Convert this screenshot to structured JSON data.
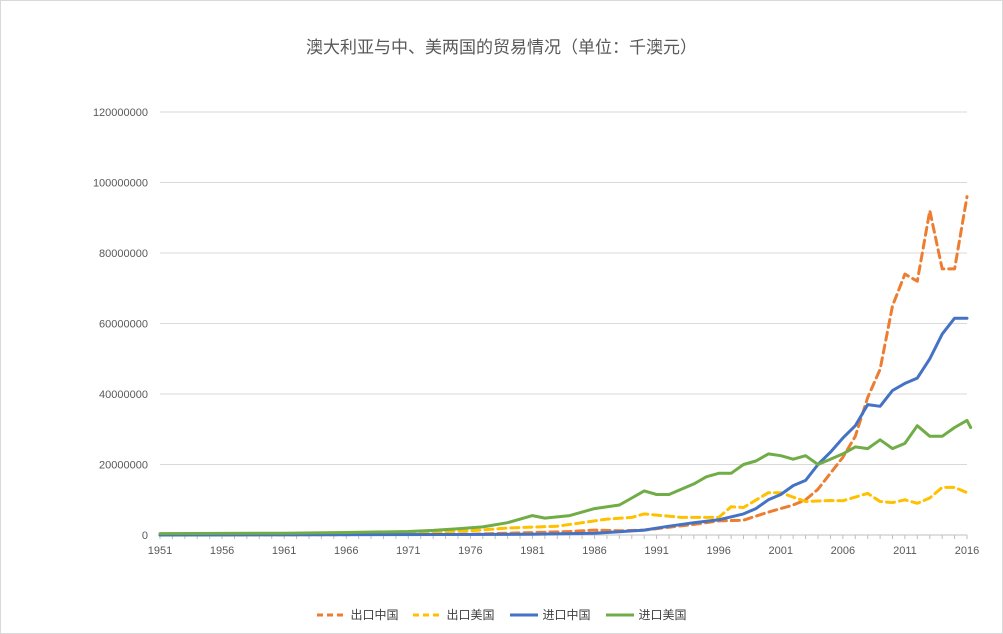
{
  "chart_data": {
    "type": "line",
    "title": "澳大利亚与中、美两国的贸易情况（单位：千澳元）",
    "xlabel": "",
    "ylabel": "",
    "ylim": [
      0,
      120000000
    ],
    "yticks": [
      "0",
      "20000000",
      "40000000",
      "60000000",
      "80000000",
      "100000000",
      "120000000"
    ],
    "xlim": [
      1951,
      2016
    ],
    "xticks": [
      "1951",
      "1956",
      "1961",
      "1966",
      "1971",
      "1976",
      "1981",
      "1986",
      "1991",
      "1996",
      "2001",
      "2006",
      "2011",
      "2016"
    ],
    "grid": true,
    "legend_position": "bottom",
    "series": [
      {
        "name": "出口中国",
        "color": "#ED7D31",
        "dash": "8,5",
        "points": [
          [
            1951,
            0
          ],
          [
            1976,
            200000
          ],
          [
            1984,
            1000000
          ],
          [
            1986,
            1400000
          ],
          [
            1988,
            1200000
          ],
          [
            1990,
            1400000
          ],
          [
            1992,
            2200000
          ],
          [
            1994,
            3000000
          ],
          [
            1996,
            4000000
          ],
          [
            1998,
            4200000
          ],
          [
            2000,
            6500000
          ],
          [
            2002,
            8500000
          ],
          [
            2003,
            10000000
          ],
          [
            2004,
            13000000
          ],
          [
            2005,
            17500000
          ],
          [
            2006,
            22000000
          ],
          [
            2007,
            28000000
          ],
          [
            2008,
            39000000
          ],
          [
            2009,
            47000000
          ],
          [
            2010,
            65000000
          ],
          [
            2011,
            74000000
          ],
          [
            2012,
            72000000
          ],
          [
            2013,
            92000000
          ],
          [
            2014,
            75500000
          ],
          [
            2015,
            75500000
          ],
          [
            2016,
            96000000
          ]
        ]
      },
      {
        "name": "出口美国",
        "color": "#FFC000",
        "dash": "8,5",
        "points": [
          [
            1951,
            200000
          ],
          [
            1961,
            300000
          ],
          [
            1971,
            600000
          ],
          [
            1976,
            1200000
          ],
          [
            1979,
            2000000
          ],
          [
            1983,
            2500000
          ],
          [
            1985,
            3500000
          ],
          [
            1987,
            4500000
          ],
          [
            1989,
            5000000
          ],
          [
            1990,
            6000000
          ],
          [
            1993,
            5000000
          ],
          [
            1996,
            5000000
          ],
          [
            1997,
            8000000
          ],
          [
            1998,
            7800000
          ],
          [
            2000,
            12000000
          ],
          [
            2001,
            12000000
          ],
          [
            2003,
            9500000
          ],
          [
            2005,
            9800000
          ],
          [
            2006,
            9700000
          ],
          [
            2008,
            11800000
          ],
          [
            2009,
            9500000
          ],
          [
            2010,
            9200000
          ],
          [
            2011,
            10000000
          ],
          [
            2012,
            9000000
          ],
          [
            2013,
            10500000
          ],
          [
            2014,
            13500000
          ],
          [
            2015,
            13500000
          ],
          [
            2016,
            12000000
          ]
        ]
      },
      {
        "name": "进口中国",
        "color": "#4472C4",
        "dash": "",
        "points": [
          [
            1951,
            0
          ],
          [
            1981,
            200000
          ],
          [
            1986,
            500000
          ],
          [
            1988,
            900000
          ],
          [
            1990,
            1400000
          ],
          [
            1992,
            2500000
          ],
          [
            1994,
            3500000
          ],
          [
            1996,
            4300000
          ],
          [
            1998,
            6000000
          ],
          [
            1999,
            7500000
          ],
          [
            2000,
            10000000
          ],
          [
            2001,
            11500000
          ],
          [
            2002,
            14000000
          ],
          [
            2003,
            15500000
          ],
          [
            2004,
            20000000
          ],
          [
            2005,
            23500000
          ],
          [
            2006,
            27500000
          ],
          [
            2007,
            31000000
          ],
          [
            2008,
            37000000
          ],
          [
            2009,
            36500000
          ],
          [
            2010,
            41000000
          ],
          [
            2011,
            43000000
          ],
          [
            2012,
            44500000
          ],
          [
            2013,
            50000000
          ],
          [
            2014,
            57000000
          ],
          [
            2015,
            61500000
          ],
          [
            2016,
            61500000
          ]
        ]
      },
      {
        "name": "进口美国",
        "color": "#70AD47",
        "dash": "",
        "points": [
          [
            1951,
            400000
          ],
          [
            1961,
            500000
          ],
          [
            1966,
            700000
          ],
          [
            1971,
            1000000
          ],
          [
            1973,
            1300000
          ],
          [
            1975,
            1800000
          ],
          [
            1977,
            2300000
          ],
          [
            1979,
            3500000
          ],
          [
            1981,
            5500000
          ],
          [
            1982,
            4800000
          ],
          [
            1984,
            5500000
          ],
          [
            1986,
            7500000
          ],
          [
            1988,
            8500000
          ],
          [
            1989,
            10500000
          ],
          [
            1990,
            12500000
          ],
          [
            1991,
            11500000
          ],
          [
            1992,
            11500000
          ],
          [
            1994,
            14500000
          ],
          [
            1995,
            16500000
          ],
          [
            1996,
            17500000
          ],
          [
            1997,
            17500000
          ],
          [
            1998,
            20000000
          ],
          [
            1999,
            21000000
          ],
          [
            2000,
            23000000
          ],
          [
            2001,
            22500000
          ],
          [
            2002,
            21500000
          ],
          [
            2003,
            22500000
          ],
          [
            2004,
            20000000
          ],
          [
            2005,
            21500000
          ],
          [
            2006,
            23000000
          ],
          [
            2007,
            25000000
          ],
          [
            2008,
            24500000
          ],
          [
            2009,
            27000000
          ],
          [
            2010,
            24500000
          ],
          [
            2011,
            26000000
          ],
          [
            2012,
            31000000
          ],
          [
            2013,
            28000000
          ],
          [
            2014,
            28000000
          ],
          [
            2015,
            30500000
          ],
          [
            2016,
            32500000
          ],
          [
            2017,
            30500000
          ]
        ]
      }
    ]
  }
}
